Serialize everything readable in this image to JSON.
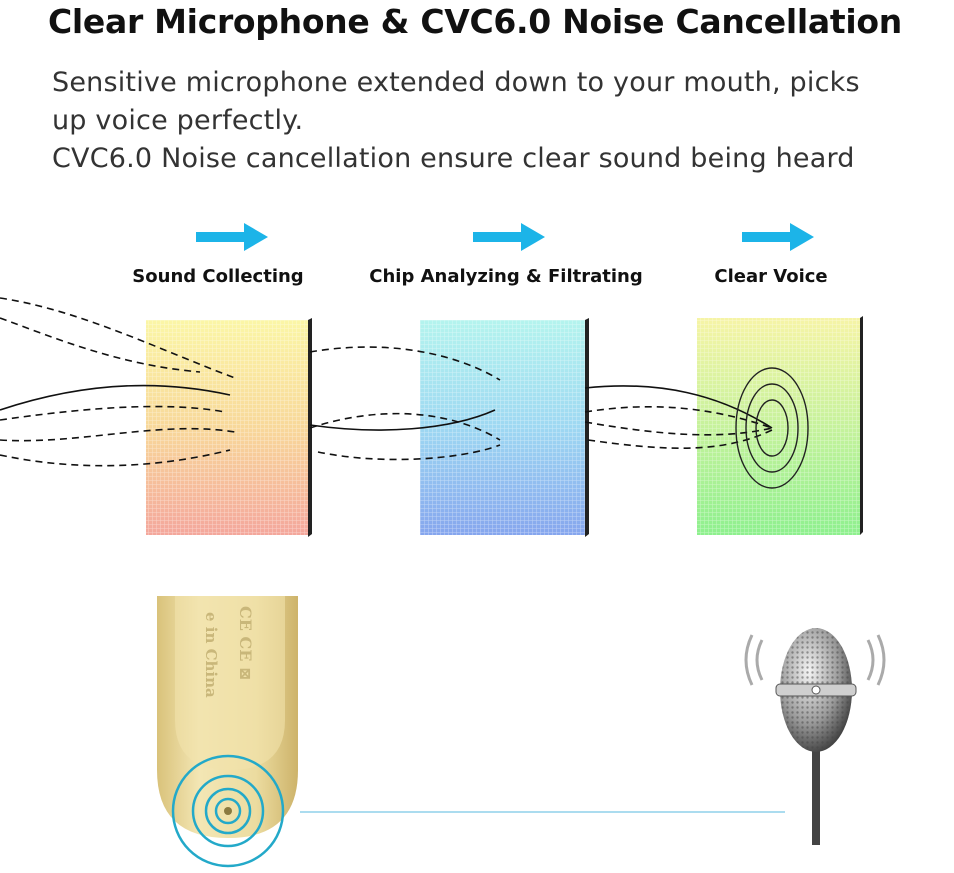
{
  "title": "Clear Microphone & CVC6.0 Noise Cancellation",
  "description": [
    "Sensitive microphone extended down to your mouth, picks",
    "up voice perfectly.",
    "CVC6.0 Noise cancellation ensure clear sound being heard"
  ],
  "stages": [
    {
      "label": "Sound Collecting"
    },
    {
      "label": "Chip Analyzing & Filtrating"
    },
    {
      "label": "Clear Voice"
    }
  ],
  "earpiece_marking": "e in China",
  "colors": {
    "arrow": "#1cb4e8",
    "ripple": "#23a9c9",
    "connector_line": "#8fd0ea",
    "earpiece": "#e8d79a"
  },
  "icons": [
    "arrow-right-icon",
    "sound-ripple-icon",
    "microphone-icon",
    "ce-mark-icon"
  ]
}
